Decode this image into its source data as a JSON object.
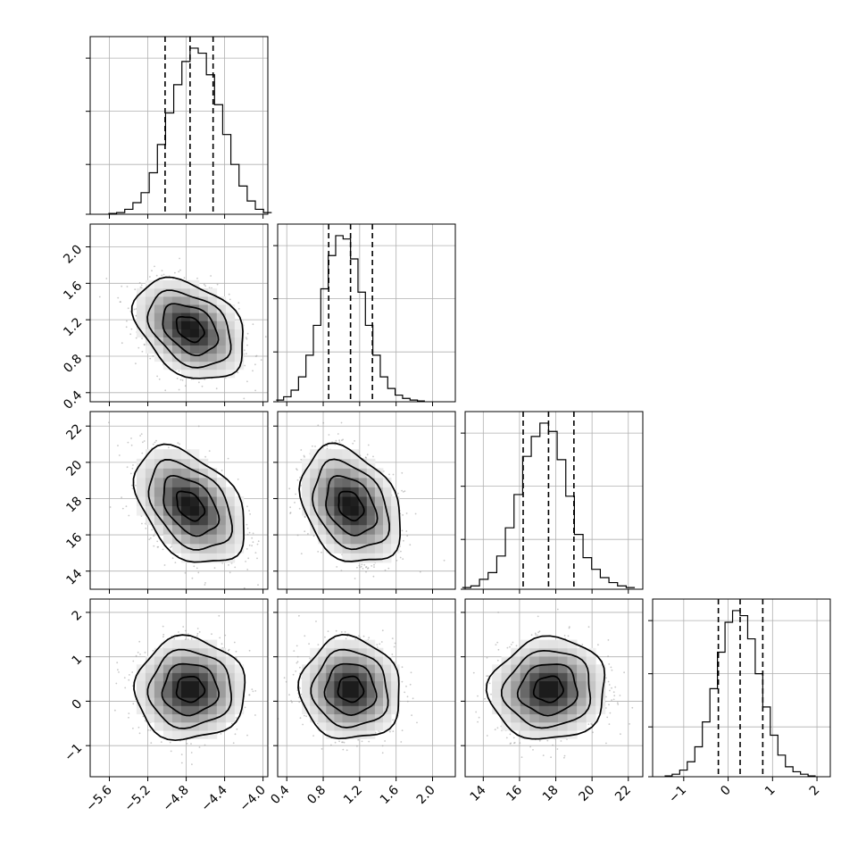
{
  "chart_data": {
    "type": "corner",
    "colors": {
      "hist": "#000000",
      "scatter": "#9a9a9a",
      "grid": "#b0b0b0",
      "frame": "#000000"
    },
    "params": [
      {
        "range": [
          -5.8,
          -3.95
        ],
        "ticks": [
          -5.6,
          -5.2,
          -4.8,
          -4.4,
          -4.0
        ],
        "tick_labels": [
          "−5.6",
          "−5.2",
          "−4.8",
          "−4.4",
          "−4.0"
        ],
        "quantiles": [
          -5.02,
          -4.76,
          -4.52
        ],
        "mean": -4.76,
        "sd": 0.25
      },
      {
        "range": [
          0.3,
          2.25
        ],
        "ticks": [
          0.4,
          0.8,
          1.2,
          1.6,
          2.0
        ],
        "tick_labels": [
          "0.4",
          "0.8",
          "1.2",
          "1.6",
          "2.0"
        ],
        "quantiles": [
          0.86,
          1.1,
          1.34
        ],
        "mean": 1.1,
        "sd": 0.24
      },
      {
        "range": [
          13.0,
          22.8
        ],
        "ticks": [
          14,
          16,
          18,
          20,
          22
        ],
        "tick_labels": [
          "14",
          "16",
          "18",
          "20",
          "22"
        ],
        "quantiles": [
          16.2,
          17.6,
          19.0
        ],
        "mean": 17.6,
        "sd": 1.4
      },
      {
        "range": [
          -1.7,
          2.3
        ],
        "ticks": [
          -1,
          0,
          1,
          2
        ],
        "tick_labels": [
          "−1",
          "0",
          "1",
          "2"
        ],
        "quantiles": [
          -0.22,
          0.27,
          0.78
        ],
        "mean": 0.27,
        "sd": 0.5
      }
    ],
    "histograms": [
      {
        "param": 0,
        "bins": 20,
        "counts": [
          0.5,
          1,
          3,
          7,
          13,
          25,
          42,
          61,
          78,
          92,
          100,
          97,
          84,
          66,
          48,
          30,
          17,
          8,
          3,
          1
        ]
      },
      {
        "param": 1,
        "bins": 20,
        "counts": [
          1,
          3,
          7,
          15,
          28,
          46,
          68,
          88,
          100,
          98,
          86,
          66,
          46,
          28,
          15,
          8,
          4,
          2,
          1,
          0.5
        ]
      },
      {
        "param": 2,
        "bins": 20,
        "counts": [
          1,
          2,
          6,
          10,
          20,
          37,
          57,
          80,
          92,
          100,
          95,
          78,
          56,
          33,
          19,
          12,
          7,
          4,
          2,
          1
        ]
      },
      {
        "param": 3,
        "bins": 20,
        "counts": [
          0.5,
          1.5,
          4,
          9,
          18,
          33,
          53,
          75,
          93,
          100,
          97,
          83,
          62,
          42,
          25,
          13,
          6,
          3,
          1.5,
          0.5
        ]
      }
    ],
    "pairs": [
      {
        "x_param": 0,
        "y_param": 1,
        "rho": -0.35
      },
      {
        "x_param": 0,
        "y_param": 2,
        "rho": -0.4
      },
      {
        "x_param": 1,
        "y_param": 2,
        "rho": -0.3
      },
      {
        "x_param": 0,
        "y_param": 3,
        "rho": 0.0
      },
      {
        "x_param": 1,
        "y_param": 3,
        "rho": -0.05
      },
      {
        "x_param": 2,
        "y_param": 3,
        "rho": 0.05
      }
    ],
    "contour_sigmas": [
      0.5,
      1.0,
      1.5,
      2.0
    ],
    "grid": true
  }
}
